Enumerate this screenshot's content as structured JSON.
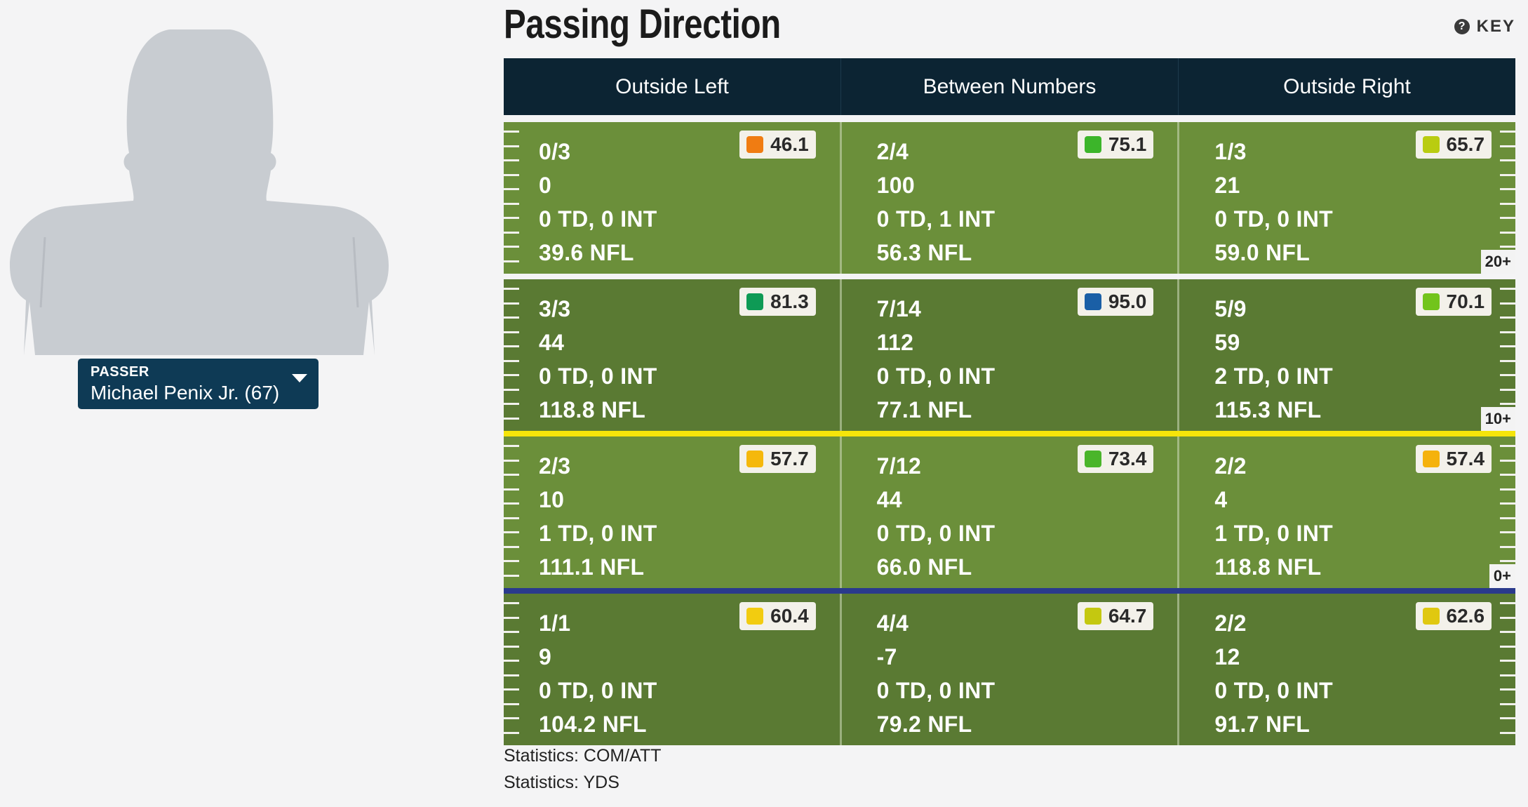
{
  "title": "Passing Direction",
  "key_label": "KEY",
  "passer": {
    "label": "PASSER",
    "value": "Michael Penix Jr. (67)"
  },
  "columns": [
    "Outside Left",
    "Between Numbers",
    "Outside Right"
  ],
  "zones": [
    {
      "depth_label": "20+",
      "cells": [
        {
          "grade": "46.1",
          "grade_color": "#f07c12",
          "comp_att": "0/3",
          "yds": "0",
          "td_int": "0 TD, 0 INT",
          "nfl": "39.6 NFL"
        },
        {
          "grade": "75.1",
          "grade_color": "#3cb52a",
          "comp_att": "2/4",
          "yds": "100",
          "td_int": "0 TD, 1 INT",
          "nfl": "56.3 NFL"
        },
        {
          "grade": "65.7",
          "grade_color": "#b9cc10",
          "comp_att": "1/3",
          "yds": "21",
          "td_int": "0 TD, 0 INT",
          "nfl": "59.0 NFL"
        }
      ]
    },
    {
      "depth_label": "10+",
      "cells": [
        {
          "grade": "81.3",
          "grade_color": "#0e9a55",
          "comp_att": "3/3",
          "yds": "44",
          "td_int": "0 TD, 0 INT",
          "nfl": "118.8 NFL"
        },
        {
          "grade": "95.0",
          "grade_color": "#1a5fa6",
          "comp_att": "7/14",
          "yds": "112",
          "td_int": "0 TD, 0 INT",
          "nfl": "77.1 NFL"
        },
        {
          "grade": "70.1",
          "grade_color": "#72c41c",
          "comp_att": "5/9",
          "yds": "59",
          "td_int": "2 TD, 0 INT",
          "nfl": "115.3 NFL"
        }
      ]
    },
    {
      "depth_label": "0+",
      "cells": [
        {
          "grade": "57.7",
          "grade_color": "#f5b80c",
          "comp_att": "2/3",
          "yds": "10",
          "td_int": "1 TD, 0 INT",
          "nfl": "111.1 NFL"
        },
        {
          "grade": "73.4",
          "grade_color": "#4ab52a",
          "comp_att": "7/12",
          "yds": "44",
          "td_int": "0 TD, 0 INT",
          "nfl": "66.0 NFL"
        },
        {
          "grade": "57.4",
          "grade_color": "#f5b20c",
          "comp_att": "2/2",
          "yds": "4",
          "td_int": "1 TD, 0 INT",
          "nfl": "118.8 NFL"
        }
      ]
    },
    {
      "depth_label": "",
      "cells": [
        {
          "grade": "60.4",
          "grade_color": "#f2cc10",
          "comp_att": "1/1",
          "yds": "9",
          "td_int": "0 TD, 0 INT",
          "nfl": "104.2 NFL"
        },
        {
          "grade": "64.7",
          "grade_color": "#c4c810",
          "comp_att": "4/4",
          "yds": "-7",
          "td_int": "0 TD, 0 INT",
          "nfl": "79.2 NFL"
        },
        {
          "grade": "62.6",
          "grade_color": "#e0c810",
          "comp_att": "2/2",
          "yds": "12",
          "td_int": "0 TD, 0 INT",
          "nfl": "91.7 NFL"
        }
      ]
    }
  ],
  "legend": [
    "Statistics: COM/ATT",
    "Statistics: YDS"
  ],
  "colors": {
    "first_down_line": "#f5e50a",
    "line_of_scrimmage": "#2a3a8c",
    "header_bg": "#0c2433",
    "passer_bg": "#0e3a55"
  }
}
